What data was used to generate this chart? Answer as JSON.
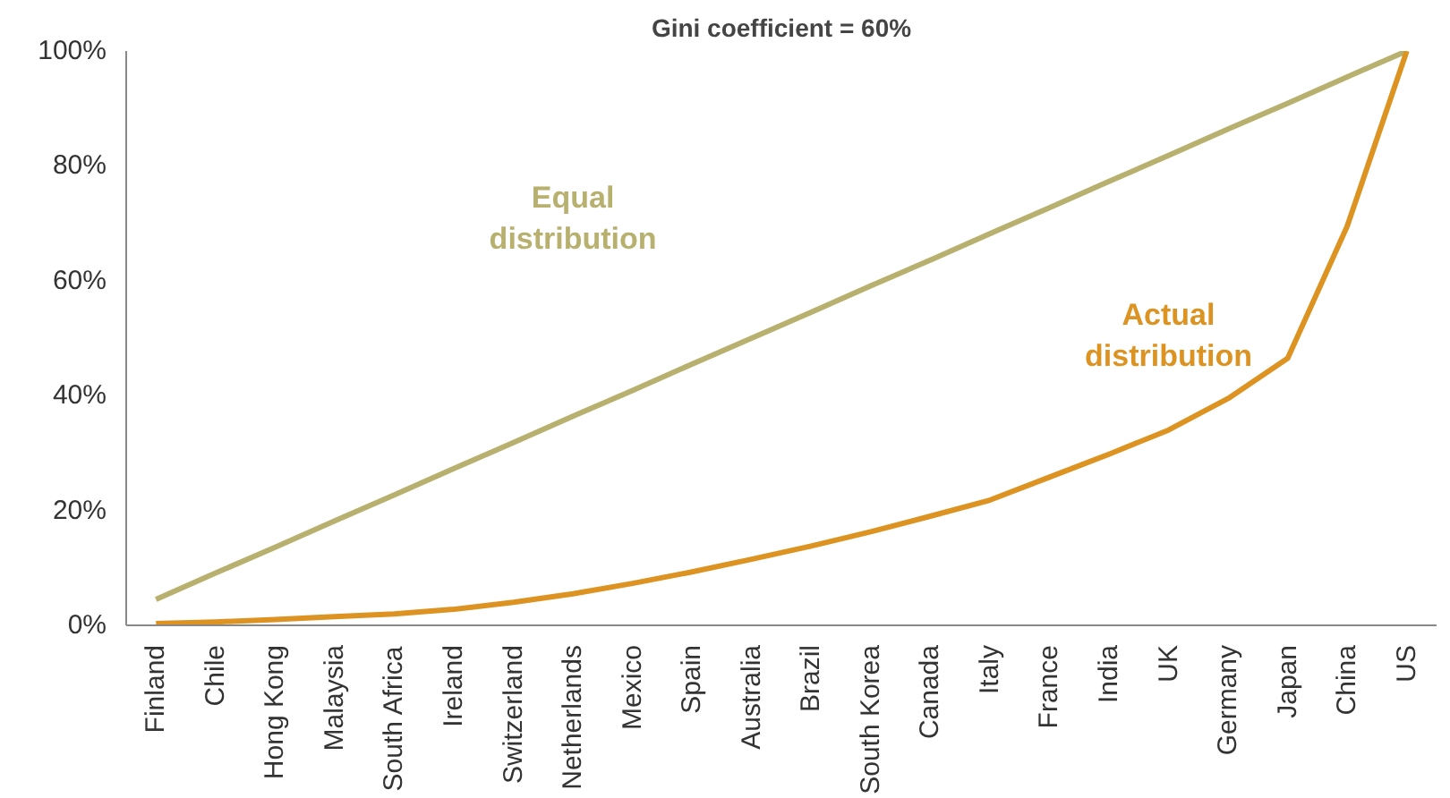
{
  "chart_data": {
    "type": "line",
    "title": "Gini coefficient = 60%",
    "categories": [
      "Finland",
      "Chile",
      "Hong Kong",
      "Malaysia",
      "South Africa",
      "Ireland",
      "Switzerland",
      "Netherlands",
      "Mexico",
      "Spain",
      "Australia",
      "Brazil",
      "South Korea",
      "Canada",
      "Italy",
      "France",
      "India",
      "UK",
      "Germany",
      "Japan",
      "China",
      "US"
    ],
    "series": [
      {
        "name": "Equal distribution",
        "color": "#b8b06e",
        "values": [
          4.5,
          9.1,
          13.6,
          18.2,
          22.7,
          27.3,
          31.8,
          36.4,
          40.9,
          45.5,
          50,
          54.5,
          59.1,
          63.6,
          68.2,
          72.7,
          77.3,
          81.8,
          86.4,
          90.9,
          95.5,
          100
        ]
      },
      {
        "name": "Actual distribution",
        "color": "#dc9322",
        "values": [
          0.3,
          0.6,
          1.0,
          1.5,
          2.0,
          2.8,
          4.0,
          5.5,
          7.3,
          9.3,
          11.5,
          13.8,
          16.3,
          19.0,
          21.8,
          25.8,
          29.8,
          34.0,
          39.5,
          46.5,
          69.5,
          100
        ]
      }
    ],
    "ylim": [
      0,
      100
    ],
    "yticks": [
      {
        "value": 0,
        "label": "0%"
      },
      {
        "value": 20,
        "label": "20%"
      },
      {
        "value": 40,
        "label": "40%"
      },
      {
        "value": 60,
        "label": "60%"
      },
      {
        "value": 80,
        "label": "80%"
      },
      {
        "value": 100,
        "label": "100%"
      }
    ],
    "grid": false,
    "marker": "none",
    "line_style": "solid"
  }
}
